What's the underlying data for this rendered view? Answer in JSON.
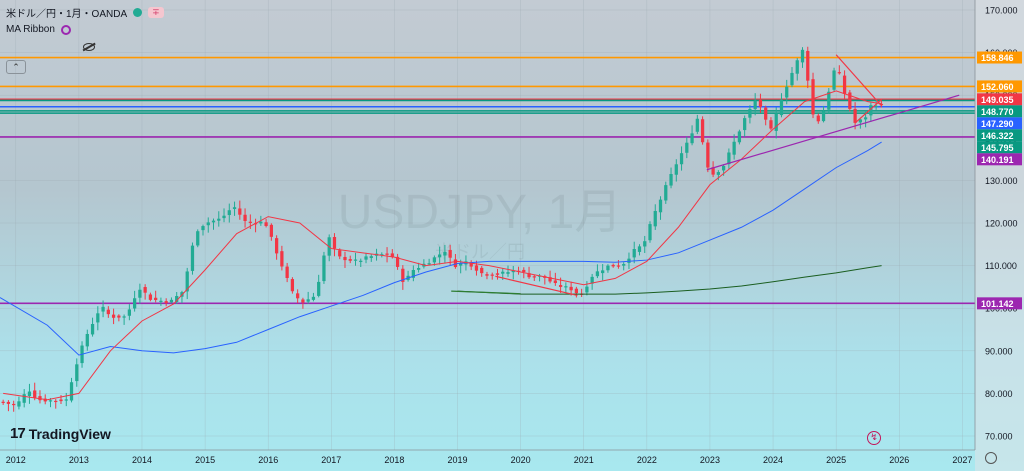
{
  "header": {
    "symbol_title": "米ドル／円・1月・OANDA",
    "indicator_label": "MA Ribbon"
  },
  "watermark": {
    "symbol": "USDJPY, 1月",
    "name": "米ドル／円"
  },
  "branding": {
    "logo_text": "TradingView",
    "logo_mark": "17"
  },
  "colors": {
    "bull": "#22ab94",
    "bear": "#f23645",
    "ma_fast": "#f23645",
    "ma_mid": "#2962ff",
    "ma_slow": "#1b5e20",
    "support_lines": "#9c27b0",
    "resistance_orange": "#ff9800"
  },
  "chart_data": {
    "type": "candlestick",
    "ylim": [
      70,
      170
    ],
    "y_ticks": [
      70,
      80,
      90,
      100,
      110,
      120,
      130,
      140,
      150,
      160,
      170
    ],
    "y_tick_labels": [
      "70.000",
      "80.000",
      "90.000",
      "100.000",
      "110.000",
      "120.000",
      "130.000",
      "140.000",
      "150.000",
      "160.000",
      "170.000"
    ],
    "x_ticks": [
      2012,
      2013,
      2014,
      2015,
      2016,
      2017,
      2018,
      2019,
      2020,
      2021,
      2022,
      2023,
      2024,
      2025,
      2026,
      2027
    ],
    "x_range": [
      2011.75,
      2027.2
    ],
    "candles_anchor": [
      [
        2011.8,
        78.0
      ],
      [
        2012.0,
        77.0
      ],
      [
        2012.2,
        81.0
      ],
      [
        2012.35,
        78.5
      ],
      [
        2012.6,
        78.3
      ],
      [
        2012.8,
        78.5
      ],
      [
        2012.95,
        86.5
      ],
      [
        2013.1,
        93.0
      ],
      [
        2013.35,
        100.5
      ],
      [
        2013.5,
        98.0
      ],
      [
        2013.75,
        98.0
      ],
      [
        2013.95,
        105.0
      ],
      [
        2014.15,
        102.0
      ],
      [
        2014.45,
        101.5
      ],
      [
        2014.65,
        104.0
      ],
      [
        2014.85,
        118.0
      ],
      [
        2015.0,
        120.0
      ],
      [
        2015.25,
        121.0
      ],
      [
        2015.45,
        124.0
      ],
      [
        2015.65,
        120.0
      ],
      [
        2015.95,
        120.2
      ],
      [
        2016.15,
        112.5
      ],
      [
        2016.4,
        103.0
      ],
      [
        2016.55,
        101.5
      ],
      [
        2016.75,
        103.0
      ],
      [
        2016.95,
        117.0
      ],
      [
        2017.1,
        112.0
      ],
      [
        2017.4,
        111.0
      ],
      [
        2017.7,
        112.5
      ],
      [
        2017.95,
        112.7
      ],
      [
        2018.15,
        106.0
      ],
      [
        2018.3,
        109.0
      ],
      [
        2018.55,
        111.0
      ],
      [
        2018.8,
        113.5
      ],
      [
        2018.95,
        110.0
      ],
      [
        2019.15,
        111.0
      ],
      [
        2019.4,
        108.0
      ],
      [
        2019.65,
        108.0
      ],
      [
        2019.95,
        109.0
      ],
      [
        2020.15,
        107.5
      ],
      [
        2020.35,
        107.5
      ],
      [
        2020.55,
        105.5
      ],
      [
        2020.8,
        104.5
      ],
      [
        2020.95,
        103.0
      ],
      [
        2021.15,
        108.0
      ],
      [
        2021.4,
        110.0
      ],
      [
        2021.6,
        110.0
      ],
      [
        2021.8,
        113.5
      ],
      [
        2021.95,
        115.0
      ],
      [
        2022.1,
        121.5
      ],
      [
        2022.3,
        128.5
      ],
      [
        2022.5,
        135.0
      ],
      [
        2022.65,
        139.0
      ],
      [
        2022.8,
        144.5
      ],
      [
        2022.9,
        138.0
      ],
      [
        2023.0,
        131.0
      ],
      [
        2023.2,
        133.0
      ],
      [
        2023.4,
        139.5
      ],
      [
        2023.55,
        144.5
      ],
      [
        2023.75,
        149.5
      ],
      [
        2023.95,
        141.0
      ],
      [
        2024.15,
        150.0
      ],
      [
        2024.35,
        157.0
      ],
      [
        2024.5,
        161.5
      ],
      [
        2024.6,
        146.0
      ],
      [
        2024.75,
        143.5
      ],
      [
        2024.9,
        152.0
      ],
      [
        2025.0,
        157.5
      ],
      [
        2025.15,
        149.5
      ],
      [
        2025.3,
        143.5
      ],
      [
        2025.45,
        144.5
      ],
      [
        2025.55,
        147.5
      ],
      [
        2025.65,
        148.0
      ],
      [
        2025.72,
        147.3
      ]
    ],
    "ma_fast": [
      [
        2011.8,
        80
      ],
      [
        2012.5,
        78.5
      ],
      [
        2013.0,
        80
      ],
      [
        2013.5,
        90
      ],
      [
        2014.0,
        97
      ],
      [
        2014.5,
        101
      ],
      [
        2015.0,
        109
      ],
      [
        2015.5,
        117.5
      ],
      [
        2016.0,
        121.5
      ],
      [
        2016.5,
        120
      ],
      [
        2017.0,
        114
      ],
      [
        2017.5,
        113
      ],
      [
        2018.0,
        112
      ],
      [
        2018.5,
        110
      ],
      [
        2019.0,
        111
      ],
      [
        2019.5,
        110
      ],
      [
        2020.0,
        108.5
      ],
      [
        2020.5,
        107
      ],
      [
        2021.0,
        105.5
      ],
      [
        2021.5,
        107
      ],
      [
        2022.0,
        111
      ],
      [
        2022.5,
        119
      ],
      [
        2023.0,
        129
      ],
      [
        2023.5,
        135
      ],
      [
        2024.0,
        142
      ],
      [
        2024.5,
        148.5
      ],
      [
        2025.0,
        151
      ],
      [
        2025.5,
        148.5
      ],
      [
        2025.72,
        148
      ]
    ],
    "ma_mid": [
      [
        2011.75,
        102.5
      ],
      [
        2012.5,
        96
      ],
      [
        2013.0,
        89
      ],
      [
        2013.5,
        91
      ],
      [
        2014.0,
        90
      ],
      [
        2014.5,
        89.5
      ],
      [
        2015.0,
        90.5
      ],
      [
        2015.5,
        92
      ],
      [
        2016.0,
        95
      ],
      [
        2016.5,
        98
      ],
      [
        2017.0,
        100.5
      ],
      [
        2017.5,
        103
      ],
      [
        2018.0,
        106
      ],
      [
        2018.5,
        108.5
      ],
      [
        2019.0,
        110.5
      ],
      [
        2019.5,
        111
      ],
      [
        2020.0,
        111
      ],
      [
        2020.5,
        111
      ],
      [
        2021.0,
        111
      ],
      [
        2021.5,
        110.8
      ],
      [
        2022.0,
        111.3
      ],
      [
        2022.5,
        113
      ],
      [
        2023.0,
        116
      ],
      [
        2023.5,
        119
      ],
      [
        2024.0,
        123
      ],
      [
        2024.5,
        128
      ],
      [
        2025.0,
        133
      ],
      [
        2025.5,
        137
      ],
      [
        2025.72,
        139
      ]
    ],
    "ma_slow": [
      [
        2019.0,
        104
      ],
      [
        2020.0,
        103.3
      ],
      [
        2020.8,
        103.3
      ],
      [
        2021.5,
        103.3
      ],
      [
        2022.0,
        103.6
      ],
      [
        2022.5,
        104
      ],
      [
        2023.0,
        104.5
      ],
      [
        2023.5,
        105.2
      ],
      [
        2024.0,
        106.2
      ],
      [
        2024.5,
        107.3
      ],
      [
        2025.0,
        108.3
      ],
      [
        2025.5,
        109.5
      ],
      [
        2025.72,
        110
      ]
    ],
    "horizontal_levels": [
      {
        "price": 158.846,
        "label": "158.846",
        "color": "#ff9800"
      },
      {
        "price": 152.06,
        "label": "152.060",
        "color": "#ff9800"
      },
      {
        "price": 149.035,
        "label": "149.035",
        "color": "#f23645"
      },
      {
        "price": 148.77,
        "label": "148.770",
        "color": "#089981"
      },
      {
        "price": 147.29,
        "label": "147.290",
        "color": "#2962ff"
      },
      {
        "price": 146.322,
        "label": "146.322",
        "color": "#089981"
      },
      {
        "price": 145.795,
        "label": "145.795",
        "color": "#089981"
      },
      {
        "price": 140.191,
        "label": "140.191",
        "color": "#9c27b0"
      },
      {
        "price": 101.142,
        "label": "101.142",
        "color": "#9c27b0"
      }
    ],
    "trendlines": [
      {
        "from": [
          2022.95,
          132.5
        ],
        "to": [
          2026.95,
          150.0
        ],
        "color": "#9c27b0"
      },
      {
        "from": [
          2025.0,
          159.5
        ],
        "to": [
          2025.72,
          147.5
        ],
        "color": "#f23645"
      },
      {
        "from": [
          2025.3,
          143.5
        ],
        "to": [
          2025.72,
          149.0
        ],
        "color": "#f23645"
      },
      {
        "from": [
          2018.9,
          104.0
        ],
        "to": [
          2020.0,
          103.4
        ],
        "color": "#2e7d32"
      },
      {
        "from": [
          2019.6,
          107.5
        ],
        "to": [
          2020.9,
          103.0
        ],
        "color": "#f23645"
      }
    ]
  }
}
